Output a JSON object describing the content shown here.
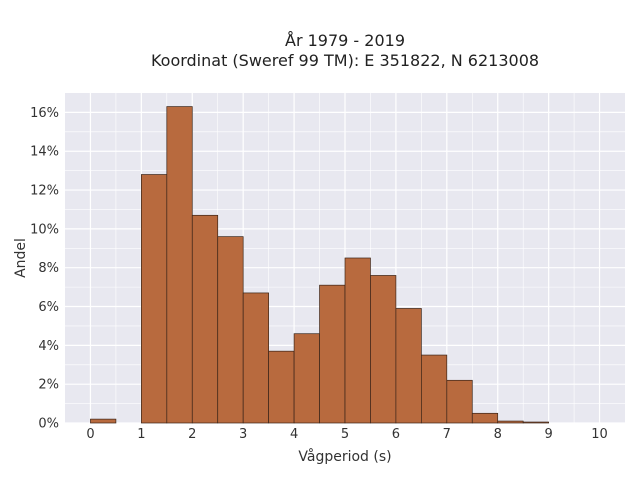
{
  "chart_data": {
    "type": "bar",
    "title_line1": "År 1979 - 2019",
    "title_line2": "Koordinat (Sweref 99 TM): E 351822, N 6213008",
    "xlabel": "Vågperiod (s)",
    "ylabel": "Andel",
    "bin_width": 0.5,
    "bins": [
      {
        "x0": 0.0,
        "x1": 0.5,
        "value": 0.2
      },
      {
        "x0": 0.5,
        "x1": 1.0,
        "value": 0.0
      },
      {
        "x0": 1.0,
        "x1": 1.5,
        "value": 12.8
      },
      {
        "x0": 1.5,
        "x1": 2.0,
        "value": 16.3
      },
      {
        "x0": 2.0,
        "x1": 2.5,
        "value": 10.7
      },
      {
        "x0": 2.5,
        "x1": 3.0,
        "value": 9.6
      },
      {
        "x0": 3.0,
        "x1": 3.5,
        "value": 6.7
      },
      {
        "x0": 3.5,
        "x1": 4.0,
        "value": 3.7
      },
      {
        "x0": 4.0,
        "x1": 4.5,
        "value": 4.6
      },
      {
        "x0": 4.5,
        "x1": 5.0,
        "value": 7.1
      },
      {
        "x0": 5.0,
        "x1": 5.5,
        "value": 8.5
      },
      {
        "x0": 5.5,
        "x1": 6.0,
        "value": 7.6
      },
      {
        "x0": 6.0,
        "x1": 6.5,
        "value": 5.9
      },
      {
        "x0": 6.5,
        "x1": 7.0,
        "value": 3.5
      },
      {
        "x0": 7.0,
        "x1": 7.5,
        "value": 2.2
      },
      {
        "x0": 7.5,
        "x1": 8.0,
        "value": 0.5
      },
      {
        "x0": 8.0,
        "x1": 8.5,
        "value": 0.1
      },
      {
        "x0": 8.5,
        "x1": 9.0,
        "value": 0.05
      }
    ],
    "xlim": [
      -0.5,
      10.5
    ],
    "ylim": [
      0,
      17
    ],
    "xticks": [
      0,
      1,
      2,
      3,
      4,
      5,
      6,
      7,
      8,
      9,
      10
    ],
    "yticks": [
      0,
      2,
      4,
      6,
      8,
      10,
      12,
      14,
      16
    ],
    "ytick_suffix": "%",
    "grid": true,
    "bar_color": "#b86a3e",
    "bar_edge_color": "#3a2418",
    "background_color": "#e8e8f0",
    "grid_color": "#ffffff"
  }
}
